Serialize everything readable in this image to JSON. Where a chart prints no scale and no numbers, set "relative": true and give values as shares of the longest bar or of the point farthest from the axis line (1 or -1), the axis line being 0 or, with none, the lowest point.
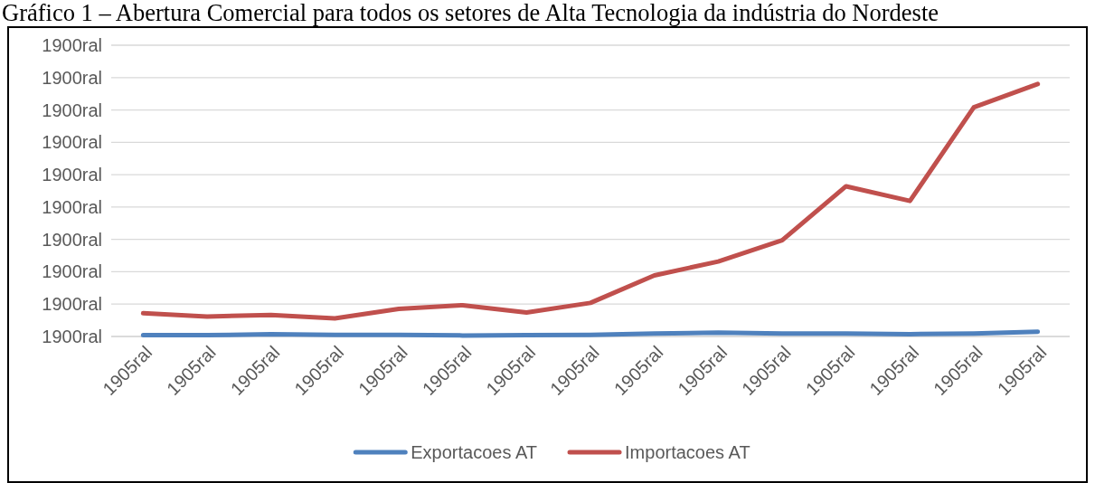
{
  "chart_data": {
    "type": "line",
    "title": "Gráfico 1 – Abertura Comercial para todos os setores de Alta Tecnologia da indústria do Nordeste",
    "categories": [
      "1905ral",
      "1905ral",
      "1905ral",
      "1905ral",
      "1905ral",
      "1905ral",
      "1905ral",
      "1905ral",
      "1905ral",
      "1905ral",
      "1905ral",
      "1905ral",
      "1905ral",
      "1905ral",
      "1905ral"
    ],
    "series": [
      {
        "name": "Exportacoes AT",
        "color": "#4f81bd",
        "values": [
          0.005,
          0.005,
          0.009,
          0.006,
          0.006,
          0.004,
          0.005,
          0.006,
          0.012,
          0.015,
          0.012,
          0.012,
          0.009,
          0.012,
          0.019
        ]
      },
      {
        "name": "Importacoes AT",
        "color": "#c0504d",
        "values": [
          0.092,
          0.079,
          0.085,
          0.072,
          0.109,
          0.124,
          0.095,
          0.133,
          0.242,
          0.297,
          0.381,
          0.595,
          0.537,
          0.908,
          1
        ]
      }
    ],
    "relative": true,
    "annotations": [
      "1900ral",
      "1900ral",
      "1900ral",
      "1900ral",
      "1900ral",
      "1900ral",
      "1900ral",
      "1900ral",
      "1900ral",
      "1900ral"
    ],
    "grid": "y",
    "legend": "bottom"
  }
}
